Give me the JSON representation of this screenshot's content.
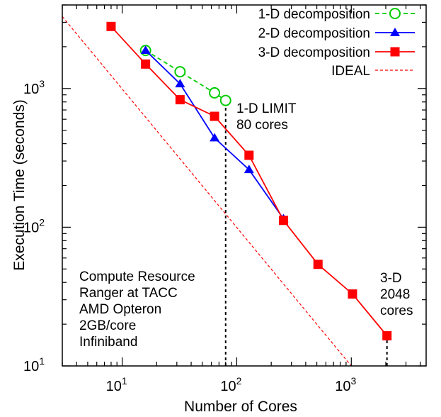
{
  "chart_data": {
    "type": "line",
    "xlabel": "Number of Cores",
    "ylabel": "Execution Time (seconds)",
    "xscale": "log",
    "yscale": "log",
    "xlim": [
      3,
      4500
    ],
    "ylim": [
      10,
      4000
    ],
    "grid": false,
    "legend_position": "top-right",
    "x_ticks": [
      {
        "value": 10,
        "base": "10",
        "exp": "1"
      },
      {
        "value": 100,
        "base": "10",
        "exp": "2"
      },
      {
        "value": 1000,
        "base": "10",
        "exp": "3"
      }
    ],
    "y_ticks": [
      {
        "value": 10,
        "base": "10",
        "exp": "1"
      },
      {
        "value": 100,
        "base": "10",
        "exp": "2"
      },
      {
        "value": 1000,
        "base": "10",
        "exp": "3"
      }
    ],
    "series": [
      {
        "name": "1-D decomposition",
        "color": "#00cc00",
        "marker": "open-circle",
        "line_style": "dashed",
        "x": [
          16,
          32,
          64,
          80
        ],
        "y": [
          1880,
          1320,
          930,
          820
        ]
      },
      {
        "name": "2-D decomposition",
        "color": "#0000ff",
        "marker": "filled-triangle",
        "line_style": "solid",
        "x": [
          16,
          32,
          64,
          128,
          256
        ],
        "y": [
          1880,
          1080,
          440,
          260,
          115
        ]
      },
      {
        "name": "3-D decomposition",
        "color": "#ff0000",
        "marker": "filled-square",
        "line_style": "solid",
        "x": [
          8,
          16,
          32,
          64,
          128,
          256,
          512,
          1024,
          2048
        ],
        "y": [
          2800,
          1500,
          830,
          630,
          330,
          112,
          54,
          33,
          16.5
        ]
      },
      {
        "name": "IDEAL",
        "color": "#ff0000",
        "marker": "none",
        "line_style": "dotted",
        "x": [
          3,
          1000
        ],
        "y": [
          3300,
          10
        ]
      }
    ],
    "annotations": {
      "limit_1d": [
        "1-D LIMIT",
        "80 cores"
      ],
      "limit_3d": [
        "3-D",
        "2048",
        "cores"
      ],
      "resource": [
        "Compute Resource",
        "Ranger at TACC",
        "AMD Opteron",
        "2GB/core",
        "Infiniband"
      ]
    },
    "limit_lines": [
      {
        "x": 80,
        "y_from": 10,
        "y_to": 820,
        "color": "#000000"
      },
      {
        "x": 2048,
        "y_from": 10,
        "y_to": 16.5,
        "color": "#000000"
      }
    ]
  }
}
